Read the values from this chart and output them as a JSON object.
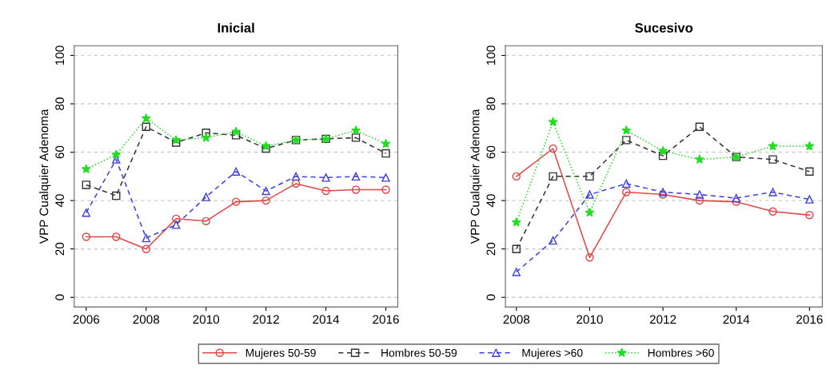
{
  "chart_data": [
    {
      "type": "line",
      "title": "Inicial",
      "ylabel": "VPP Cualquier Adenoma",
      "x": [
        2006,
        2007,
        2008,
        2009,
        2010,
        2011,
        2012,
        2013,
        2014,
        2015,
        2016
      ],
      "xlim": [
        2005.6,
        2016.4
      ],
      "xticks": [
        2006,
        2008,
        2010,
        2012,
        2014,
        2016
      ],
      "ylim": [
        -4,
        104
      ],
      "yticks": [
        0,
        20,
        40,
        60,
        80,
        100
      ],
      "grid": "y",
      "legend": "bottom",
      "series": [
        {
          "name": "Mujeres 50-59",
          "color": "#e04848",
          "marker": "circle",
          "line_style": "solid",
          "values": [
            25,
            25,
            20,
            32.5,
            31.5,
            39.5,
            40,
            47,
            44,
            44.5,
            44.5
          ]
        },
        {
          "name": "Hombres 50-59",
          "color": "#333333",
          "marker": "square",
          "line_style": "dashed",
          "values": [
            46.5,
            42,
            70.5,
            64,
            68,
            67,
            61.5,
            65,
            65.5,
            66,
            59.5
          ]
        },
        {
          "name": "Mujeres >60",
          "color": "#4040e0",
          "marker": "triangle",
          "line_style": "dashed",
          "values": [
            35,
            57,
            24.5,
            30,
            41.5,
            52,
            44,
            50,
            49.5,
            50,
            49.5
          ]
        },
        {
          "name": "Hombres >60",
          "color": "#22dd22",
          "marker": "star",
          "line_style": "dotted",
          "values": [
            53,
            59,
            74,
            65,
            66,
            68.5,
            62.5,
            65,
            65.5,
            69,
            63.5
          ]
        }
      ]
    },
    {
      "type": "line",
      "title": "Sucesivo",
      "ylabel": "VPP Cualquier Adenoma",
      "x": [
        2008,
        2009,
        2010,
        2011,
        2012,
        2013,
        2014,
        2015,
        2016
      ],
      "xlim": [
        2007.7,
        2016.35
      ],
      "xticks": [
        2008,
        2010,
        2012,
        2014,
        2016
      ],
      "ylim": [
        -4,
        104
      ],
      "yticks": [
        0,
        20,
        40,
        60,
        80,
        100
      ],
      "grid": "y",
      "series": [
        {
          "color": "#e04848",
          "marker": "circle",
          "line_style": "solid",
          "values": [
            50,
            61.5,
            16.5,
            43.5,
            42.5,
            40,
            39.5,
            35.5,
            34
          ]
        },
        {
          "color": "#333333",
          "marker": "square",
          "line_style": "dashed",
          "values": [
            20,
            50,
            50,
            65,
            58.5,
            70.5,
            58,
            57,
            52
          ]
        },
        {
          "color": "#4040e0",
          "marker": "triangle",
          "line_style": "dashed",
          "values": [
            10.5,
            23.5,
            42.5,
            47,
            43.5,
            42.5,
            41,
            43.5,
            40.5
          ]
        },
        {
          "color": "#22dd22",
          "marker": "star",
          "line_style": "dotted",
          "values": [
            31,
            72.5,
            35,
            69,
            60.5,
            57,
            58,
            62.5,
            62.5
          ]
        }
      ]
    }
  ]
}
